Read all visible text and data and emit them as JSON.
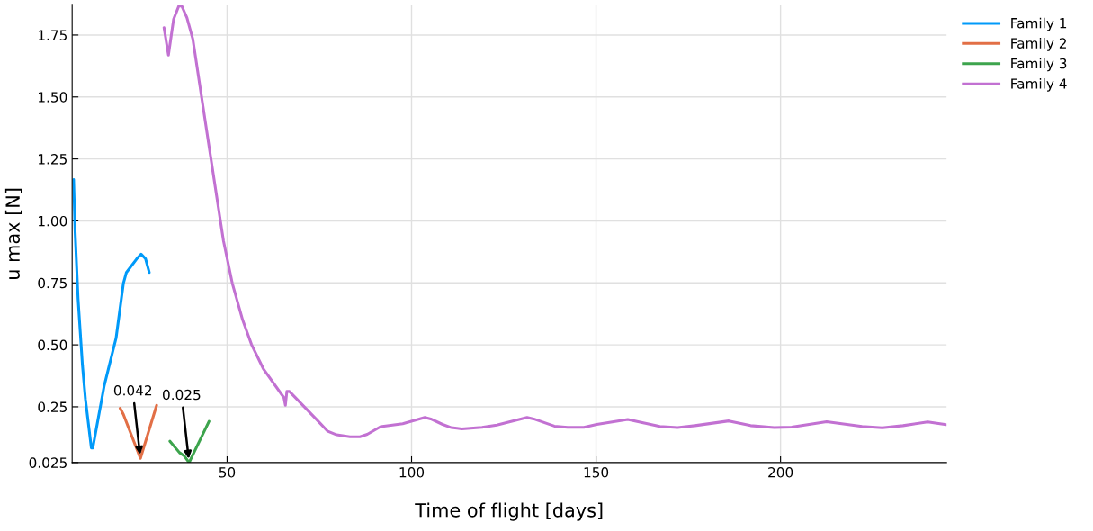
{
  "chart_data": {
    "type": "line",
    "xlabel": "Time of flight [days]",
    "ylabel": "u max [N]",
    "xlim": [
      8,
      245
    ],
    "xticks": [
      50,
      100,
      150,
      200
    ],
    "ylim": [
      0.025,
      1.87
    ],
    "yticks": [
      0.025,
      0.25,
      {
        "value": 0.5,
        "label": "0.50"
      },
      0.75,
      {
        "value": 1.0,
        "label": "1.00"
      },
      1.25,
      {
        "value": 1.5,
        "label": "1.50"
      },
      1.75
    ],
    "grid": true,
    "legend": "top right",
    "marker": "none",
    "line_style": "solid",
    "series": [
      {
        "name": "Family 1",
        "color": "#009af9",
        "x": [
          8.4,
          8.8,
          9.6,
          10.8,
          11.6,
          13.2,
          13.6,
          16.7,
          19.9,
          21.9,
          22.7,
          25.5,
          26.7,
          27.9,
          28.9
        ],
        "values": [
          1.167,
          0.958,
          0.687,
          0.416,
          0.281,
          0.084,
          0.084,
          0.336,
          0.527,
          0.749,
          0.792,
          0.847,
          0.866,
          0.847,
          0.792
        ]
      },
      {
        "name": "Family 2",
        "color": "#e26f46",
        "x": [
          21.0,
          21.9,
          26.5,
          30.9
        ],
        "values": [
          0.244,
          0.219,
          0.042,
          0.256
        ]
      },
      {
        "name": "Family 3",
        "color": "#3da44d",
        "x": [
          34.5,
          37.1,
          38.3,
          39.7,
          45.1
        ],
        "values": [
          0.111,
          0.065,
          0.053,
          0.025,
          0.191
        ]
      },
      {
        "name": "Family 4",
        "color": "#c271d2",
        "x": [
          32.9,
          34.1,
          35.5,
          36.9,
          37.7,
          39.1,
          40.7,
          44.7,
          49.0,
          51.4,
          54.2,
          56.6,
          59.8,
          65.4,
          65.8,
          66.2,
          66.9,
          74.5,
          77.3,
          79.7,
          83.3,
          86.0,
          88.0,
          91.6,
          97.6,
          103.6,
          105.2,
          108.4,
          110.8,
          113.6,
          119.1,
          123.1,
          131.3,
          133.1,
          138.7,
          142.3,
          146.7,
          150.2,
          158.6,
          167.3,
          172.1,
          176.8,
          186.0,
          191.9,
          198.3,
          203.0,
          212.5,
          222.1,
          227.6,
          233.2,
          239.9,
          244.9
        ],
        "values": [
          1.78,
          1.669,
          1.814,
          1.867,
          1.867,
          1.82,
          1.734,
          1.34,
          0.921,
          0.749,
          0.601,
          0.502,
          0.404,
          0.287,
          0.256,
          0.312,
          0.312,
          0.195,
          0.151,
          0.137,
          0.129,
          0.129,
          0.139,
          0.17,
          0.182,
          0.207,
          0.201,
          0.179,
          0.166,
          0.161,
          0.167,
          0.176,
          0.207,
          0.201,
          0.172,
          0.167,
          0.167,
          0.179,
          0.199,
          0.171,
          0.166,
          0.174,
          0.193,
          0.174,
          0.166,
          0.168,
          0.19,
          0.171,
          0.165,
          0.174,
          0.189,
          0.178
        ]
      }
    ],
    "annotations": [
      {
        "text": "0.042",
        "x": 26.5,
        "y": 0.042
      },
      {
        "text": "0.025",
        "x": 39.7,
        "y": 0.025
      }
    ]
  }
}
